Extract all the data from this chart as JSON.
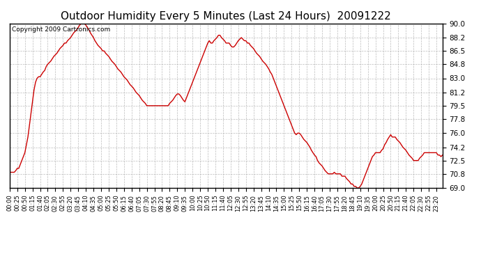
{
  "title": "Outdoor Humidity Every 5 Minutes (Last 24 Hours)  20091222",
  "copyright": "Copyright 2009 Cartronics.com",
  "line_color": "#cc0000",
  "background_color": "#ffffff",
  "grid_color": "#aaaaaa",
  "ylim": [
    69.0,
    90.0
  ],
  "yticks": [
    69.0,
    70.8,
    72.5,
    74.2,
    76.0,
    77.8,
    79.5,
    81.2,
    83.0,
    84.8,
    86.5,
    88.2,
    90.0
  ],
  "tick_every": 5,
  "humidity_data": [
    71.0,
    71.0,
    71.0,
    71.0,
    71.2,
    71.5,
    71.5,
    72.0,
    72.5,
    73.0,
    73.5,
    74.5,
    75.5,
    77.0,
    78.5,
    80.0,
    81.5,
    82.5,
    83.0,
    83.2,
    83.2,
    83.5,
    83.8,
    84.0,
    84.5,
    84.8,
    85.0,
    85.2,
    85.5,
    85.8,
    86.0,
    86.2,
    86.5,
    86.8,
    87.0,
    87.2,
    87.5,
    87.5,
    87.8,
    88.0,
    88.2,
    88.5,
    88.8,
    89.0,
    89.2,
    89.5,
    89.8,
    90.0,
    90.0,
    90.0,
    89.8,
    89.5,
    89.2,
    88.8,
    88.5,
    88.2,
    87.8,
    87.5,
    87.2,
    87.0,
    86.8,
    86.5,
    86.5,
    86.2,
    86.0,
    85.8,
    85.5,
    85.2,
    85.0,
    84.8,
    84.5,
    84.2,
    84.0,
    83.8,
    83.5,
    83.2,
    83.0,
    82.8,
    82.5,
    82.2,
    82.0,
    81.8,
    81.5,
    81.2,
    81.0,
    80.8,
    80.5,
    80.2,
    80.0,
    79.8,
    79.5,
    79.5,
    79.5,
    79.5,
    79.5,
    79.5,
    79.5,
    79.5,
    79.5,
    79.5,
    79.5,
    79.5,
    79.5,
    79.5,
    79.5,
    79.8,
    80.0,
    80.2,
    80.5,
    80.8,
    81.0,
    81.0,
    80.8,
    80.5,
    80.2,
    80.0,
    80.5,
    81.0,
    81.5,
    82.0,
    82.5,
    83.0,
    83.5,
    84.0,
    84.5,
    85.0,
    85.5,
    86.0,
    86.5,
    87.0,
    87.5,
    87.8,
    87.5,
    87.5,
    87.8,
    88.0,
    88.2,
    88.5,
    88.5,
    88.2,
    88.0,
    87.8,
    87.5,
    87.5,
    87.5,
    87.2,
    87.0,
    87.0,
    87.2,
    87.5,
    87.8,
    88.0,
    88.2,
    88.0,
    87.8,
    87.8,
    87.5,
    87.5,
    87.2,
    87.0,
    86.8,
    86.5,
    86.2,
    86.0,
    85.8,
    85.5,
    85.2,
    85.0,
    84.8,
    84.5,
    84.2,
    83.8,
    83.5,
    83.0,
    82.5,
    82.0,
    81.5,
    81.0,
    80.5,
    80.0,
    79.5,
    79.0,
    78.5,
    78.0,
    77.5,
    77.0,
    76.5,
    76.0,
    75.8,
    76.0,
    76.0,
    75.8,
    75.5,
    75.2,
    75.0,
    74.8,
    74.5,
    74.2,
    73.8,
    73.5,
    73.2,
    73.0,
    72.5,
    72.2,
    72.0,
    71.8,
    71.5,
    71.2,
    71.0,
    70.8,
    70.8,
    70.8,
    70.8,
    71.0,
    70.8,
    70.8,
    70.8,
    70.8,
    70.5,
    70.5,
    70.5,
    70.2,
    70.0,
    69.8,
    69.5,
    69.5,
    69.2,
    69.2,
    69.0,
    69.0,
    69.2,
    69.5,
    70.0,
    70.5,
    71.0,
    71.5,
    72.0,
    72.5,
    73.0,
    73.2,
    73.5,
    73.5,
    73.5,
    73.5,
    73.8,
    74.0,
    74.5,
    74.8,
    75.2,
    75.5,
    75.8,
    75.5,
    75.5,
    75.5,
    75.2,
    75.0,
    74.8,
    74.5,
    74.2,
    74.0,
    73.8,
    73.5,
    73.2,
    73.0,
    72.8,
    72.5,
    72.5,
    72.5,
    72.5,
    72.8,
    73.0,
    73.2,
    73.5,
    73.5,
    73.5,
    73.5,
    73.5,
    73.5,
    73.5,
    73.5,
    73.5,
    73.2,
    73.2,
    73.0,
    73.2
  ]
}
